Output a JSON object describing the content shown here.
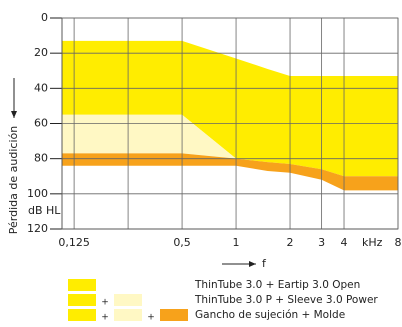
{
  "chart_data": {
    "type": "band",
    "y_label": "Pérdida de audición",
    "y_unit": "dB HL",
    "x_label": "f",
    "x_unit": "kHz",
    "log_x": true,
    "invert_y": true,
    "grid": true,
    "xlim": [
      0.107,
      8
    ],
    "ylim": [
      0,
      120
    ],
    "xticks": [
      {
        "value": 0.125,
        "label": "0,125"
      },
      {
        "value": 0.25,
        "label": null
      },
      {
        "value": 0.5,
        "label": "0,5"
      },
      1,
      2,
      3,
      4,
      8
    ],
    "yticks": [
      0,
      20,
      40,
      60,
      80,
      100,
      120
    ],
    "legend_joiner": "+",
    "series": [
      {
        "name": "ThinTube 3.0 + Eartip 3.0 Open",
        "color": "#ffed00",
        "x": [
          0.107,
          0.5,
          1,
          1.5,
          2,
          3,
          4,
          8
        ],
        "values": [
          13,
          13,
          23,
          29,
          33,
          33,
          33,
          33
        ],
        "lower": [
          55,
          55,
          80,
          82,
          83,
          86,
          90,
          90
        ]
      },
      {
        "name": "ThinTube 3.0 P + Sleeve 3.0 Power",
        "color": "#fff8c4",
        "x": [
          0.107,
          0.5,
          1
        ],
        "values": [
          55,
          55,
          80
        ],
        "lower": [
          77,
          77,
          80
        ]
      },
      {
        "name": "Gancho de sujeción + Molde",
        "color": "#f7a21b",
        "x": [
          0.107,
          0.5,
          1,
          1.5,
          2,
          3,
          4,
          8
        ],
        "values": [
          77,
          77,
          80,
          82,
          83,
          86,
          90,
          90
        ],
        "lower": [
          84,
          84,
          84,
          87,
          88,
          92,
          98,
          98
        ]
      }
    ]
  }
}
